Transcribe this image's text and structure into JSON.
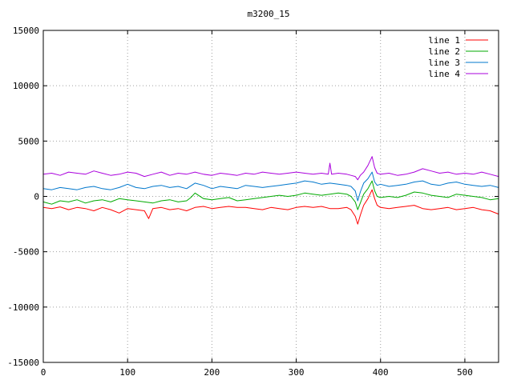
{
  "chart_data": {
    "type": "line",
    "title": "m3200_15",
    "xlim": [
      0,
      540
    ],
    "ylim": [
      -15000,
      15000
    ],
    "xticks": [
      0,
      100,
      200,
      300,
      400,
      500
    ],
    "yticks": [
      -15000,
      -10000,
      -5000,
      0,
      5000,
      10000,
      15000
    ],
    "grid": true,
    "legend_position": "top-right",
    "series": [
      {
        "name": "line 1",
        "color": "#ff0000",
        "x": [
          0,
          10,
          20,
          30,
          40,
          50,
          60,
          70,
          80,
          90,
          100,
          110,
          120,
          125,
          130,
          140,
          150,
          160,
          170,
          180,
          190,
          200,
          210,
          220,
          230,
          240,
          250,
          260,
          270,
          280,
          290,
          300,
          310,
          320,
          330,
          340,
          350,
          360,
          365,
          370,
          373,
          376,
          380,
          385,
          390,
          393,
          396,
          400,
          410,
          420,
          430,
          440,
          450,
          460,
          470,
          480,
          490,
          500,
          510,
          520,
          530,
          540
        ],
        "y": [
          -1000,
          -1100,
          -950,
          -1200,
          -1000,
          -1100,
          -1300,
          -1000,
          -1200,
          -1500,
          -1100,
          -1200,
          -1300,
          -2000,
          -1100,
          -1000,
          -1200,
          -1100,
          -1300,
          -1000,
          -900,
          -1100,
          -1000,
          -900,
          -1000,
          -1000,
          -1100,
          -1200,
          -1000,
          -1100,
          -1200,
          -1000,
          -900,
          -1000,
          -900,
          -1100,
          -1100,
          -1000,
          -1200,
          -1800,
          -2500,
          -1700,
          -800,
          -200,
          600,
          -200,
          -800,
          -1000,
          -1100,
          -1000,
          -900,
          -800,
          -1100,
          -1200,
          -1100,
          -1000,
          -1200,
          -1100,
          -1000,
          -1200,
          -1300,
          -1600
        ]
      },
      {
        "name": "line 2",
        "color": "#00aa00",
        "x": [
          0,
          10,
          20,
          30,
          40,
          50,
          60,
          70,
          80,
          90,
          100,
          110,
          120,
          130,
          140,
          150,
          160,
          170,
          175,
          180,
          190,
          200,
          210,
          220,
          230,
          240,
          250,
          260,
          270,
          280,
          290,
          300,
          310,
          320,
          330,
          340,
          350,
          360,
          365,
          370,
          373,
          376,
          380,
          385,
          390,
          393,
          396,
          400,
          410,
          420,
          430,
          440,
          450,
          460,
          470,
          480,
          490,
          500,
          510,
          520,
          530,
          540
        ],
        "y": [
          -500,
          -700,
          -400,
          -500,
          -300,
          -600,
          -400,
          -300,
          -500,
          -200,
          -300,
          -400,
          -500,
          -600,
          -400,
          -300,
          -500,
          -400,
          -100,
          300,
          -200,
          -300,
          -200,
          -100,
          -400,
          -300,
          -200,
          -100,
          0,
          100,
          0,
          100,
          300,
          200,
          100,
          200,
          300,
          200,
          0,
          -500,
          -1200,
          -600,
          200,
          700,
          1400,
          500,
          0,
          -100,
          0,
          -100,
          100,
          400,
          300,
          100,
          0,
          -100,
          200,
          100,
          0,
          -100,
          -300,
          -200
        ]
      },
      {
        "name": "line 3",
        "color": "#0077cc",
        "x": [
          0,
          10,
          20,
          30,
          40,
          50,
          60,
          70,
          80,
          90,
          100,
          110,
          120,
          130,
          140,
          150,
          160,
          170,
          180,
          190,
          200,
          210,
          220,
          230,
          240,
          250,
          260,
          270,
          280,
          290,
          300,
          310,
          320,
          330,
          340,
          350,
          360,
          365,
          370,
          373,
          376,
          380,
          385,
          390,
          393,
          396,
          400,
          410,
          420,
          430,
          440,
          450,
          460,
          470,
          480,
          490,
          500,
          510,
          520,
          530,
          540
        ],
        "y": [
          700,
          600,
          800,
          700,
          600,
          800,
          900,
          700,
          600,
          800,
          1100,
          800,
          700,
          900,
          1000,
          800,
          900,
          700,
          1200,
          1000,
          700,
          900,
          800,
          700,
          1000,
          900,
          800,
          900,
          1000,
          1100,
          1200,
          1400,
          1300,
          1100,
          1200,
          1100,
          1000,
          900,
          500,
          -400,
          400,
          1200,
          1600,
          2200,
          1300,
          1000,
          1100,
          900,
          1000,
          1100,
          1300,
          1400,
          1100,
          1000,
          1200,
          1300,
          1100,
          1000,
          900,
          1000,
          800
        ]
      },
      {
        "name": "line 4",
        "color": "#aa00dd",
        "x": [
          0,
          10,
          20,
          30,
          40,
          50,
          60,
          70,
          80,
          90,
          100,
          110,
          120,
          130,
          140,
          150,
          160,
          170,
          180,
          190,
          200,
          210,
          220,
          230,
          240,
          250,
          260,
          270,
          280,
          290,
          300,
          310,
          320,
          330,
          338,
          340,
          342,
          350,
          360,
          365,
          370,
          373,
          376,
          380,
          385,
          390,
          393,
          396,
          400,
          410,
          420,
          430,
          440,
          450,
          460,
          470,
          480,
          490,
          500,
          510,
          520,
          530,
          540
        ],
        "y": [
          2000,
          2100,
          1900,
          2200,
          2100,
          2000,
          2300,
          2100,
          1900,
          2000,
          2200,
          2100,
          1800,
          2000,
          2200,
          1900,
          2100,
          2000,
          2200,
          2000,
          1900,
          2100,
          2000,
          1900,
          2100,
          2000,
          2200,
          2100,
          2000,
          2100,
          2200,
          2100,
          2000,
          2100,
          2000,
          3000,
          2000,
          2100,
          2000,
          1900,
          1800,
          1500,
          1900,
          2200,
          2800,
          3600,
          2600,
          2100,
          2000,
          2100,
          1900,
          2000,
          2200,
          2500,
          2300,
          2100,
          2200,
          2000,
          2100,
          2000,
          2200,
          2000,
          1800
        ]
      }
    ]
  }
}
